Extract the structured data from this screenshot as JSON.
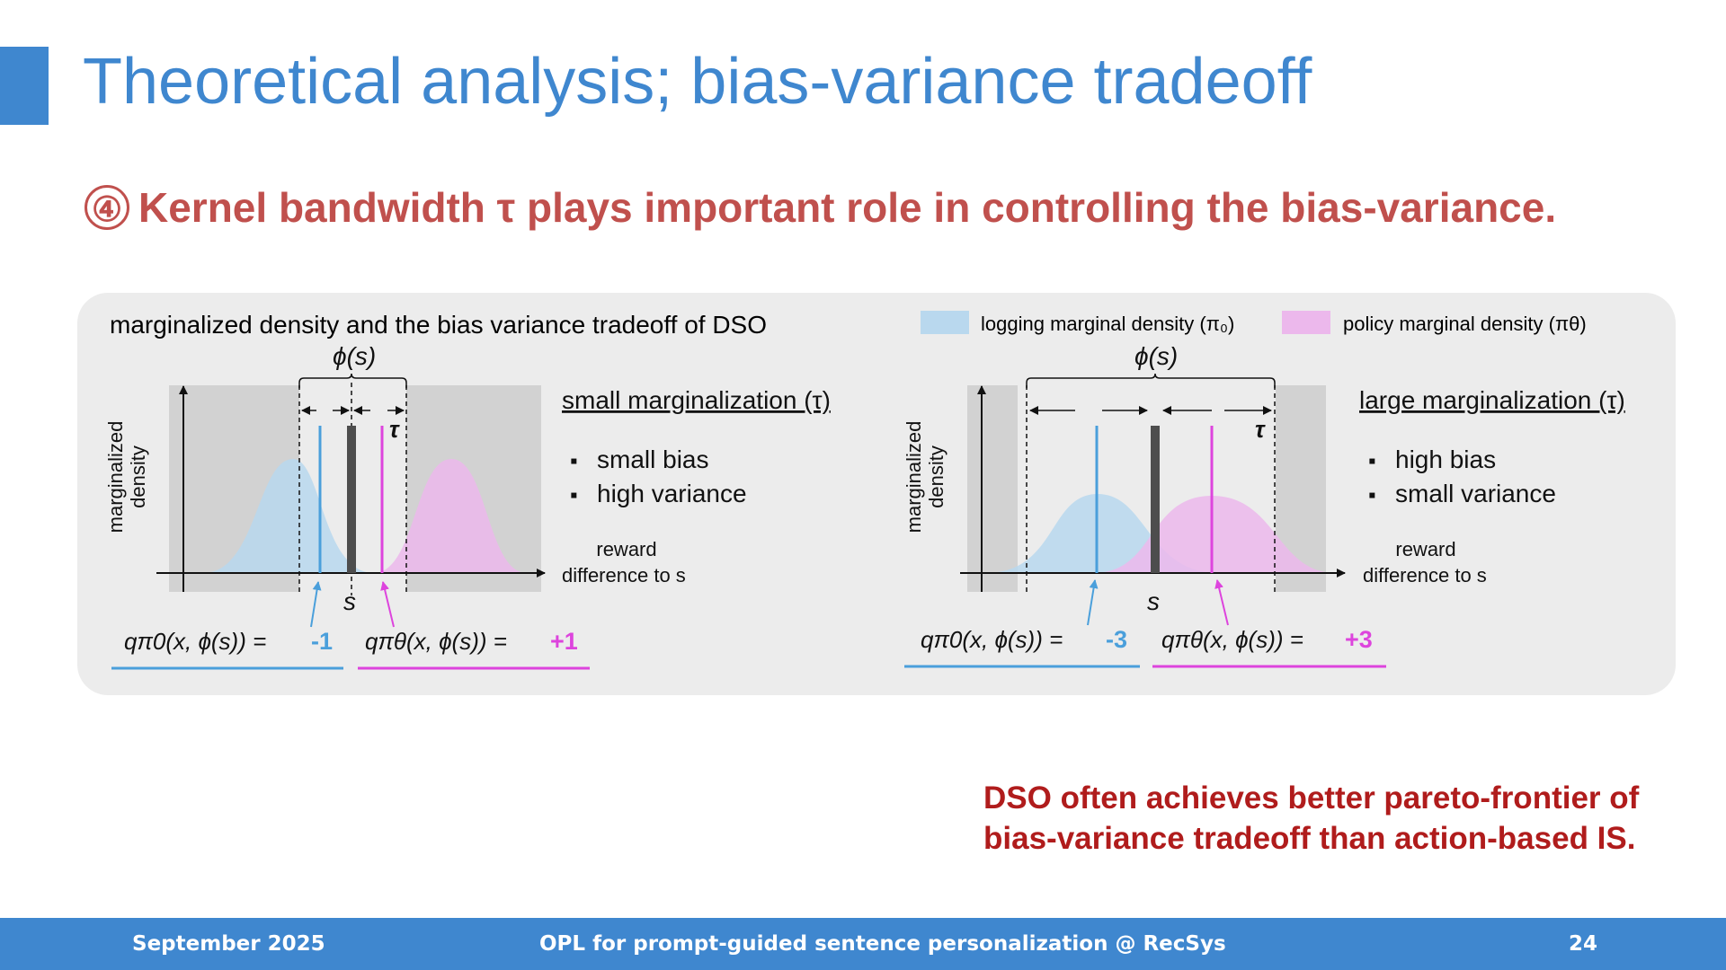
{
  "slide": {
    "title": "Theoretical analysis; bias-variance tradeoff",
    "subtitle_number": "④",
    "subtitle": "Kernel bandwidth τ plays important role in controlling the bias-variance.",
    "conclusion_line1": "DSO often achieves better pareto-frontier of",
    "conclusion_line2": "bias-variance tradeoff than action-based IS."
  },
  "figure": {
    "heading": "marginalized density and the bias variance tradeoff of DSO",
    "legend_logging": "logging marginal density (π₀)",
    "legend_policy": "policy marginal density (πθ)",
    "colors": {
      "logging": "#4a9fdb",
      "logging_fill": "#b9d8ee",
      "policy": "#dd44dd",
      "policy_fill": "#ecb8ec",
      "center": "#4d4d4d"
    },
    "left": {
      "phi_label": "ϕ(s)",
      "tau_label": "τ",
      "y_label_line1": "marginalized",
      "y_label_line2": "density",
      "x_label_line1": "reward",
      "x_label_line2": "difference to s",
      "s_label": "s",
      "panel_title": "small marginalization (τ)",
      "bullet1": "small bias",
      "bullet2": "high variance",
      "q0_expr": "qπ0(x, ϕ(s)) =",
      "q0_value": "-1",
      "qtheta_expr": "qπθ(x, ϕ(s)) =",
      "qtheta_value": "+1"
    },
    "right": {
      "phi_label": "ϕ(s)",
      "tau_label": "τ",
      "y_label_line1": "marginalized",
      "y_label_line2": "density",
      "x_label_line1": "reward",
      "x_label_line2": "difference to s",
      "s_label": "s",
      "panel_title": "large marginalization (τ)",
      "bullet1": "high bias",
      "bullet2": "small variance",
      "q0_expr": "qπ0(x, ϕ(s)) =",
      "q0_value": "-3",
      "qtheta_expr": "qπθ(x, ϕ(s)) =",
      "qtheta_value": "+3"
    }
  },
  "footer": {
    "date": "September 2025",
    "center": "OPL for prompt-guided sentence personalization @ RecSys",
    "page": "24"
  }
}
